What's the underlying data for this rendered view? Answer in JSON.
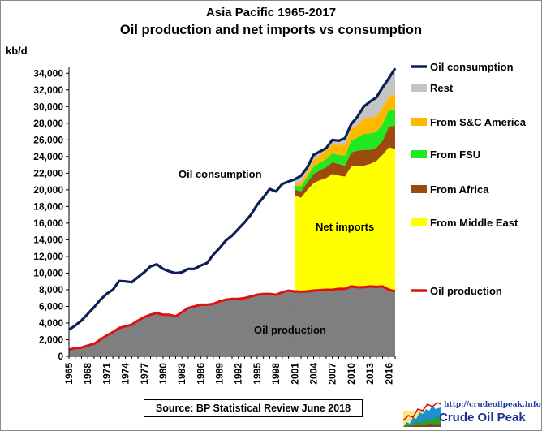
{
  "header": {
    "title_line1": "Asia Pacific 1965-2017",
    "title_line2": "Oil production and net imports vs consumption"
  },
  "source_note": "Source: BP Statistical Review  June 2018",
  "logo": {
    "url": "http://crudeoilpeak.info",
    "name": "Crude Oil Peak"
  },
  "annotations": {
    "consumption": "Oil consumption",
    "net_imports": "Net imports",
    "production": "Oil production"
  },
  "colors": {
    "consumption": "#0b1f55",
    "production_line": "#e01010",
    "production_area": "#7f7f7f",
    "middle_east": "#ffff00",
    "africa": "#9c4a0e",
    "fsu": "#22e822",
    "sc_america": "#ffb800",
    "rest": "#c4c4c4"
  },
  "chart_data": {
    "type": "area",
    "title": "Asia Pacific 1965-2017 Oil production and net imports vs consumption",
    "ylabel": "kb/d",
    "ylim": [
      0,
      35000
    ],
    "yticks": [
      0,
      2000,
      4000,
      6000,
      8000,
      10000,
      12000,
      14000,
      16000,
      18000,
      20000,
      22000,
      24000,
      26000,
      28000,
      30000,
      32000,
      34000
    ],
    "ytick_labels": [
      "0",
      "2,000",
      "4,000",
      "6,000",
      "8,000",
      "10,000",
      "12,000",
      "14,000",
      "16,000",
      "18,000",
      "20,000",
      "22,000",
      "24,000",
      "26,000",
      "28,000",
      "30,000",
      "32,000",
      "34,000"
    ],
    "xlim": [
      1965,
      2017
    ],
    "xticks": [
      1965,
      1968,
      1971,
      1974,
      1977,
      1980,
      1983,
      1986,
      1989,
      1992,
      1995,
      1998,
      2001,
      2004,
      2007,
      2010,
      2013,
      2016
    ],
    "grid": false,
    "legend_position": "right",
    "legend": [
      "Oil consumption",
      "Rest",
      "From S&C America",
      "From FSU",
      "From Africa",
      "From Middle East",
      "Oil production"
    ],
    "consumption": {
      "name": "Oil consumption",
      "x": [
        1965,
        1966,
        1967,
        1968,
        1969,
        1970,
        1971,
        1972,
        1973,
        1974,
        1975,
        1976,
        1977,
        1978,
        1979,
        1980,
        1981,
        1982,
        1983,
        1984,
        1985,
        1986,
        1987,
        1988,
        1989,
        1990,
        1991,
        1992,
        1993,
        1994,
        1995,
        1996,
        1997,
        1998,
        1999,
        2000,
        2001,
        2002,
        2003,
        2004,
        2005,
        2006,
        2007,
        2008,
        2009,
        2010,
        2011,
        2012,
        2013,
        2014,
        2015,
        2016,
        2017
      ],
      "values": [
        3200,
        3700,
        4300,
        5100,
        5900,
        6800,
        7500,
        8000,
        9050,
        9000,
        8900,
        9500,
        10100,
        10800,
        11050,
        10500,
        10200,
        10000,
        10100,
        10500,
        10500,
        10900,
        11200,
        12200,
        13000,
        13900,
        14500,
        15300,
        16100,
        17000,
        18200,
        19100,
        20100,
        19800,
        20700,
        21000,
        21250,
        21700,
        22700,
        24200,
        24600,
        25000,
        26000,
        25900,
        26200,
        27900,
        28800,
        30000,
        30600,
        31100,
        32300,
        33400,
        34600
      ]
    },
    "production": {
      "name": "Oil production",
      "x": [
        1965,
        1966,
        1967,
        1968,
        1969,
        1970,
        1971,
        1972,
        1973,
        1974,
        1975,
        1976,
        1977,
        1978,
        1979,
        1980,
        1981,
        1982,
        1983,
        1984,
        1985,
        1986,
        1987,
        1988,
        1989,
        1990,
        1991,
        1992,
        1993,
        1994,
        1995,
        1996,
        1997,
        1998,
        1999,
        2000,
        2001,
        2002,
        2003,
        2004,
        2005,
        2006,
        2007,
        2008,
        2009,
        2010,
        2011,
        2012,
        2013,
        2014,
        2015,
        2016,
        2017
      ],
      "values": [
        800,
        1000,
        1050,
        1300,
        1500,
        2000,
        2500,
        2900,
        3400,
        3600,
        3800,
        4300,
        4700,
        5000,
        5200,
        5000,
        5000,
        4800,
        5300,
        5800,
        6000,
        6200,
        6200,
        6300,
        6600,
        6800,
        6900,
        6900,
        7000,
        7200,
        7400,
        7500,
        7500,
        7400,
        7700,
        7900,
        7800,
        7750,
        7800,
        7900,
        7950,
        8000,
        8000,
        8100,
        8100,
        8400,
        8300,
        8300,
        8400,
        8350,
        8400,
        8000,
        7800
      ]
    },
    "imports_x": [
      2001,
      2002,
      2003,
      2004,
      2005,
      2006,
      2007,
      2008,
      2009,
      2010,
      2011,
      2012,
      2013,
      2014,
      2015,
      2016,
      2017
    ],
    "imports_series": [
      {
        "name": "From Middle East",
        "values": [
          11500,
          11300,
          12200,
          12900,
          13200,
          13400,
          13900,
          13600,
          13500,
          14400,
          14600,
          14600,
          14700,
          15100,
          15800,
          17100,
          17100
        ]
      },
      {
        "name": "From Africa",
        "values": [
          750,
          750,
          900,
          1100,
          1200,
          1300,
          1400,
          1400,
          1300,
          1700,
          1800,
          1900,
          1700,
          1600,
          1700,
          2500,
          2800
        ]
      },
      {
        "name": "From FSU",
        "values": [
          500,
          600,
          700,
          900,
          900,
          1000,
          1100,
          1100,
          1200,
          1400,
          1600,
          1900,
          2000,
          1900,
          2000,
          2000,
          2000
        ]
      },
      {
        "name": "From S&C America",
        "values": [
          300,
          500,
          600,
          800,
          900,
          1000,
          1100,
          1200,
          1300,
          1400,
          1500,
          1900,
          1900,
          1900,
          2000,
          1600,
          1800
        ]
      },
      {
        "name": "Rest",
        "values": [
          400,
          750,
          500,
          700,
          450,
          300,
          500,
          600,
          800,
          600,
          1000,
          1400,
          1900,
          2250,
          2400,
          2200,
          2900
        ]
      }
    ]
  }
}
